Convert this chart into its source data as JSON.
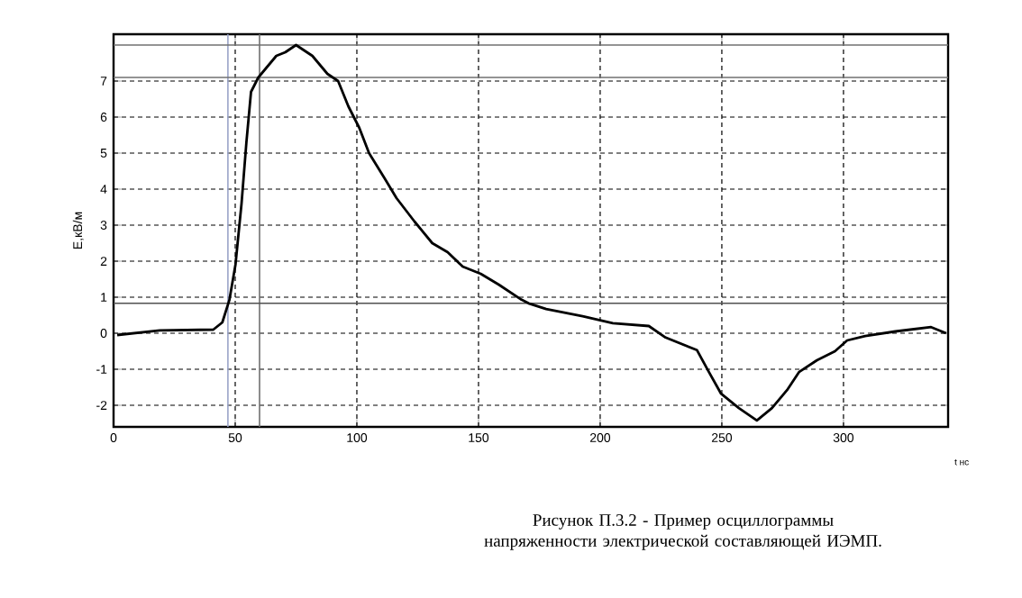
{
  "chart_data": {
    "type": "line",
    "xlabel": "t нс",
    "ylabel": "Е,кВ/м",
    "annotations": [
      "Рисунок П.3.2 - Пример осциллограммы напряженности электрической составляющей ИЭМП."
    ],
    "xlim": [
      0,
      343
    ],
    "ylim": [
      -2.6,
      8.3
    ],
    "xticks": [
      0,
      50,
      100,
      150,
      200,
      250,
      300
    ],
    "yticks": [
      -2,
      -1,
      0,
      1,
      2,
      3,
      4,
      5,
      6,
      7
    ],
    "grid": true,
    "line_style": "solid",
    "marker": "none",
    "ref_lines": [
      {
        "axis": "x",
        "value": 47,
        "color": "#9aa4c8"
      },
      {
        "axis": "x",
        "value": 60,
        "color": "#707070"
      },
      {
        "axis": "y",
        "value": 8.0,
        "color": "#707070"
      },
      {
        "axis": "y",
        "value": 7.1,
        "color": "#707070"
      },
      {
        "axis": "y",
        "value": 0.83,
        "color": "#505050"
      }
    ],
    "series": [
      {
        "color": "#000000",
        "x": [
          1.5,
          19,
          41,
          44.7,
          47.6,
          50.1,
          52.6,
          54.6,
          56.5,
          59.5,
          63.2,
          66.9,
          70.6,
          75,
          81.7,
          87.9,
          92.3,
          96.5,
          101,
          105,
          111.4,
          116.3,
          123.7,
          131,
          137.3,
          143.5,
          150.9,
          158.3,
          167.7,
          170.6,
          177.8,
          192.8,
          205.2,
          220,
          226.9,
          239.8,
          244.7,
          249.6,
          257,
          264.4,
          270.6,
          276.8,
          281.7,
          289.1,
          296.5,
          301.5,
          308.9,
          321.3,
          336,
          342.2
        ],
        "values": [
          -0.05,
          0.08,
          0.1,
          0.3,
          0.92,
          1.9,
          3.6,
          5.3,
          6.7,
          7.1,
          7.4,
          7.7,
          7.8,
          8.0,
          7.7,
          7.2,
          7.0,
          6.3,
          5.7,
          5.0,
          4.3,
          3.75,
          3.1,
          2.5,
          2.25,
          1.85,
          1.65,
          1.35,
          0.93,
          0.83,
          0.67,
          0.47,
          0.28,
          0.2,
          -0.12,
          -0.47,
          -1.08,
          -1.67,
          -2.08,
          -2.42,
          -2.08,
          -1.58,
          -1.08,
          -0.75,
          -0.5,
          -0.2,
          -0.08,
          0.05,
          0.17,
          0.0
        ]
      }
    ]
  }
}
